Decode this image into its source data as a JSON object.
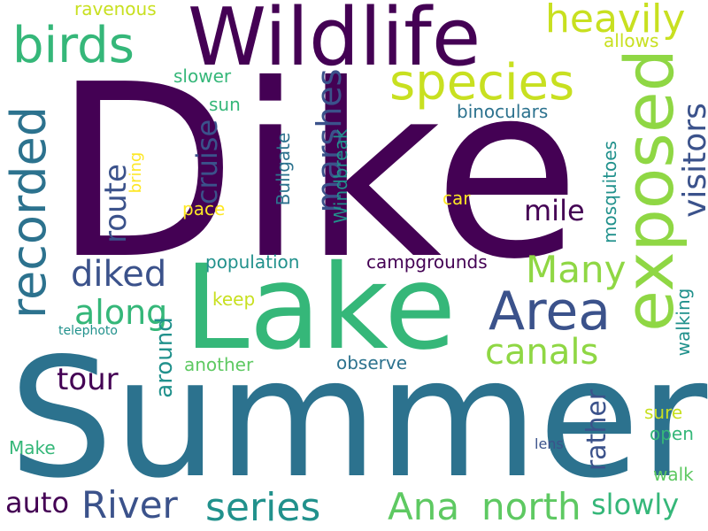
{
  "palette": {
    "dark_purple": "#440154",
    "indigo": "#3b528b",
    "teal_blue": "#2c728e",
    "teal": "#21918c",
    "green": "#35b779",
    "light_green": "#5ec962",
    "yellow_green": "#8fd744",
    "yellow": "#c8e020",
    "lemon": "#fde725"
  },
  "words": {
    "dike": "Dike",
    "summer": "Summer",
    "lake": "Lake",
    "wildlife": "Wildlife",
    "exposed": "exposed",
    "species": "species",
    "birds": "birds",
    "recorded": "recorded",
    "area": "Area",
    "heavily": "heavily",
    "marshes": "marshes",
    "visitors": "visitors",
    "many": "Many",
    "canals": "canals",
    "diked": "diked",
    "along": "along",
    "route": "route",
    "cruise": "cruise",
    "mile": "mile",
    "series": "series",
    "river": "River",
    "ana": "Ana",
    "north": "north",
    "tour": "tour",
    "auto": "auto",
    "slowly": "slowly",
    "rather": "rather",
    "around": "around",
    "ravenous": "ravenous",
    "allows": "allows",
    "slower": "slower",
    "sun": "sun",
    "binoculars": "binoculars",
    "bring": "bring",
    "bullgate": "Bullgate",
    "windbreak": "Windbreak",
    "mosquitoes": "mosquitoes",
    "car": "car",
    "pace": "pace",
    "population": "population",
    "campgrounds": "campgrounds",
    "keep": "keep",
    "telephoto": "telephoto",
    "another": "another",
    "observe": "observe",
    "walking": "walking",
    "sure": "sure",
    "open": "open",
    "lens": "lens",
    "make": "Make",
    "walk": "walk"
  }
}
